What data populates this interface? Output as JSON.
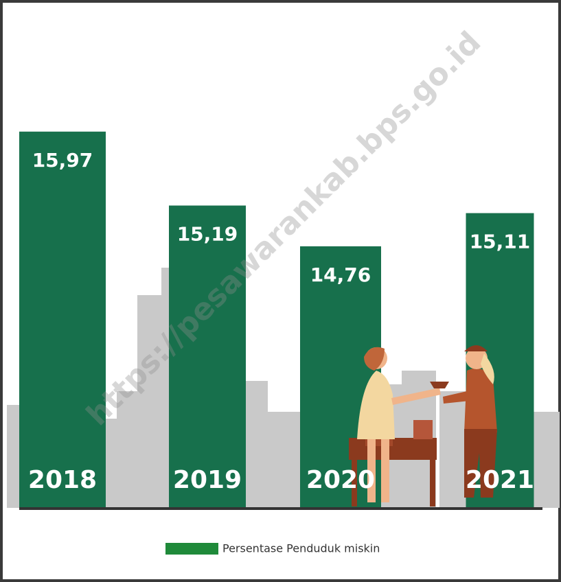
{
  "chart_data": {
    "type": "bar",
    "categories": [
      "2018",
      "2019",
      "2020",
      "2021"
    ],
    "values": [
      15.97,
      15.19,
      14.76,
      15.11
    ],
    "value_labels": [
      "15,97",
      "15,19",
      "14,76",
      "15,11"
    ],
    "color": "#17704c",
    "legend": "Persentase Penduduk miskin",
    "legend_color": "#1f8a3a",
    "ylim": [
      12,
      16.2
    ],
    "annotation": "https://pesawarankab.bps.go.id"
  }
}
